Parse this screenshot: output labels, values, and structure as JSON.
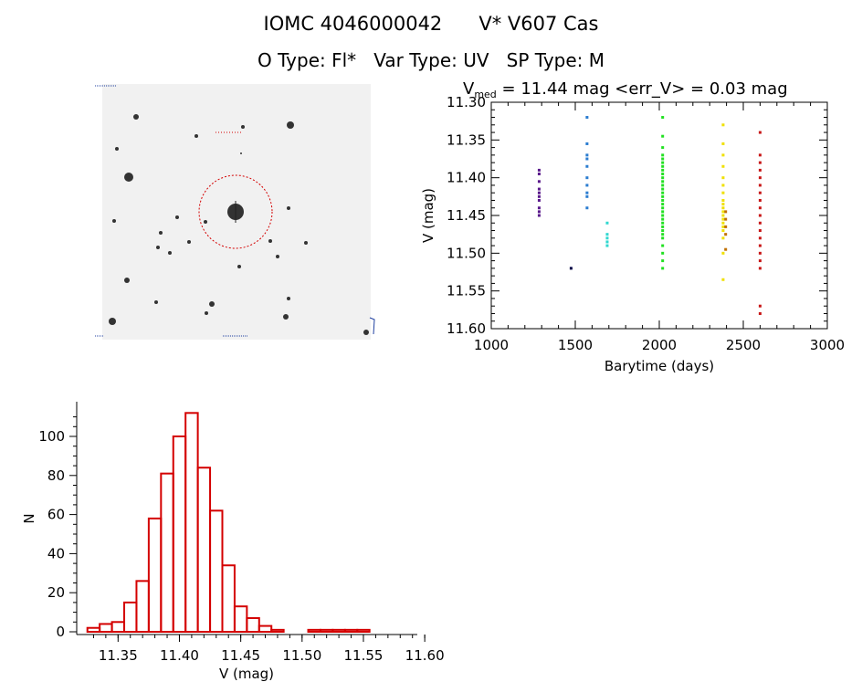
{
  "title": "IOMC 4046000042      V* V607 Cas",
  "subtitle": "O Type: Fl*   Var Type: UV   SP Type: M",
  "image_panel": {
    "alt": "sky-field-image"
  },
  "chart_data": [
    {
      "type": "scatter",
      "header": {
        "v": "V",
        "sub": "med",
        "rest": " = 11.44 mag <err_V> = 0.03 mag"
      },
      "xlabel": "Barytime (days)",
      "ylabel": "V (mag)",
      "xlim": [
        1000,
        3000
      ],
      "ylim": [
        11.6,
        11.3
      ],
      "y_inverted": true,
      "xticks": [
        1000,
        1500,
        2000,
        2500,
        3000
      ],
      "yticks": [
        "11.30",
        "11.35",
        "11.40",
        "11.45",
        "11.50",
        "11.55",
        "11.60"
      ],
      "series": [
        {
          "color": "#5a1a8c",
          "x": 1285,
          "y": [
            11.39,
            11.395,
            11.405,
            11.415,
            11.42,
            11.425,
            11.43,
            11.44,
            11.445,
            11.45
          ]
        },
        {
          "color": "#2a7cd0",
          "x": 1570,
          "y": [
            11.32,
            11.355,
            11.37,
            11.375,
            11.385,
            11.4,
            11.41,
            11.42,
            11.425,
            11.44
          ]
        },
        {
          "color": "#000044",
          "x": 1475,
          "y": [
            11.52
          ]
        },
        {
          "color": "#30d8d0",
          "x": 1690,
          "y": [
            11.46,
            11.475,
            11.48,
            11.485,
            11.49
          ]
        },
        {
          "color": "#20e020",
          "x": 2020,
          "y": [
            11.32,
            11.345,
            11.36,
            11.37,
            11.375,
            11.38,
            11.385,
            11.39,
            11.395,
            11.4,
            11.405,
            11.41,
            11.415,
            11.42,
            11.425,
            11.43,
            11.435,
            11.44,
            11.445,
            11.45,
            11.455,
            11.46,
            11.465,
            11.47,
            11.475,
            11.48,
            11.49,
            11.5,
            11.51,
            11.52
          ]
        },
        {
          "color": "#f0e000",
          "x": 2380,
          "y": [
            11.33,
            11.355,
            11.37,
            11.385,
            11.4,
            11.41,
            11.42,
            11.43,
            11.435,
            11.44,
            11.445,
            11.45,
            11.455,
            11.46,
            11.465,
            11.47,
            11.48,
            11.5,
            11.535
          ]
        },
        {
          "color": "#c07000",
          "x": 2395,
          "y": [
            11.445,
            11.455,
            11.465,
            11.475,
            11.495
          ]
        },
        {
          "color": "#c81818",
          "x": 2600,
          "y": [
            11.34,
            11.37,
            11.38,
            11.39,
            11.4,
            11.41,
            11.42,
            11.43,
            11.44,
            11.45,
            11.46,
            11.47,
            11.48,
            11.49,
            11.5,
            11.51,
            11.52,
            11.57,
            11.58
          ]
        }
      ]
    },
    {
      "type": "bar",
      "xlabel": "V (mag)",
      "ylabel": "N",
      "xlim": [
        11.32,
        11.6
      ],
      "ylim": [
        0,
        115
      ],
      "xticks": [
        "11.35",
        "11.40",
        "11.45",
        "11.50",
        "11.55",
        "11.60"
      ],
      "yticks": [
        0,
        20,
        40,
        60,
        80,
        100
      ],
      "bin_width": 0.01,
      "bin_left": [
        11.325,
        11.335,
        11.345,
        11.355,
        11.365,
        11.375,
        11.385,
        11.395,
        11.405,
        11.415,
        11.425,
        11.435,
        11.445,
        11.455,
        11.465,
        11.475,
        11.485,
        11.495,
        11.505,
        11.515,
        11.525,
        11.535,
        11.545,
        11.555,
        11.565,
        11.575,
        11.585
      ],
      "values": [
        2,
        4,
        5,
        15,
        26,
        58,
        81,
        100,
        112,
        84,
        62,
        34,
        13,
        7,
        3,
        1,
        0,
        0,
        1,
        1,
        1,
        1,
        1,
        0,
        0,
        0,
        0
      ]
    }
  ]
}
